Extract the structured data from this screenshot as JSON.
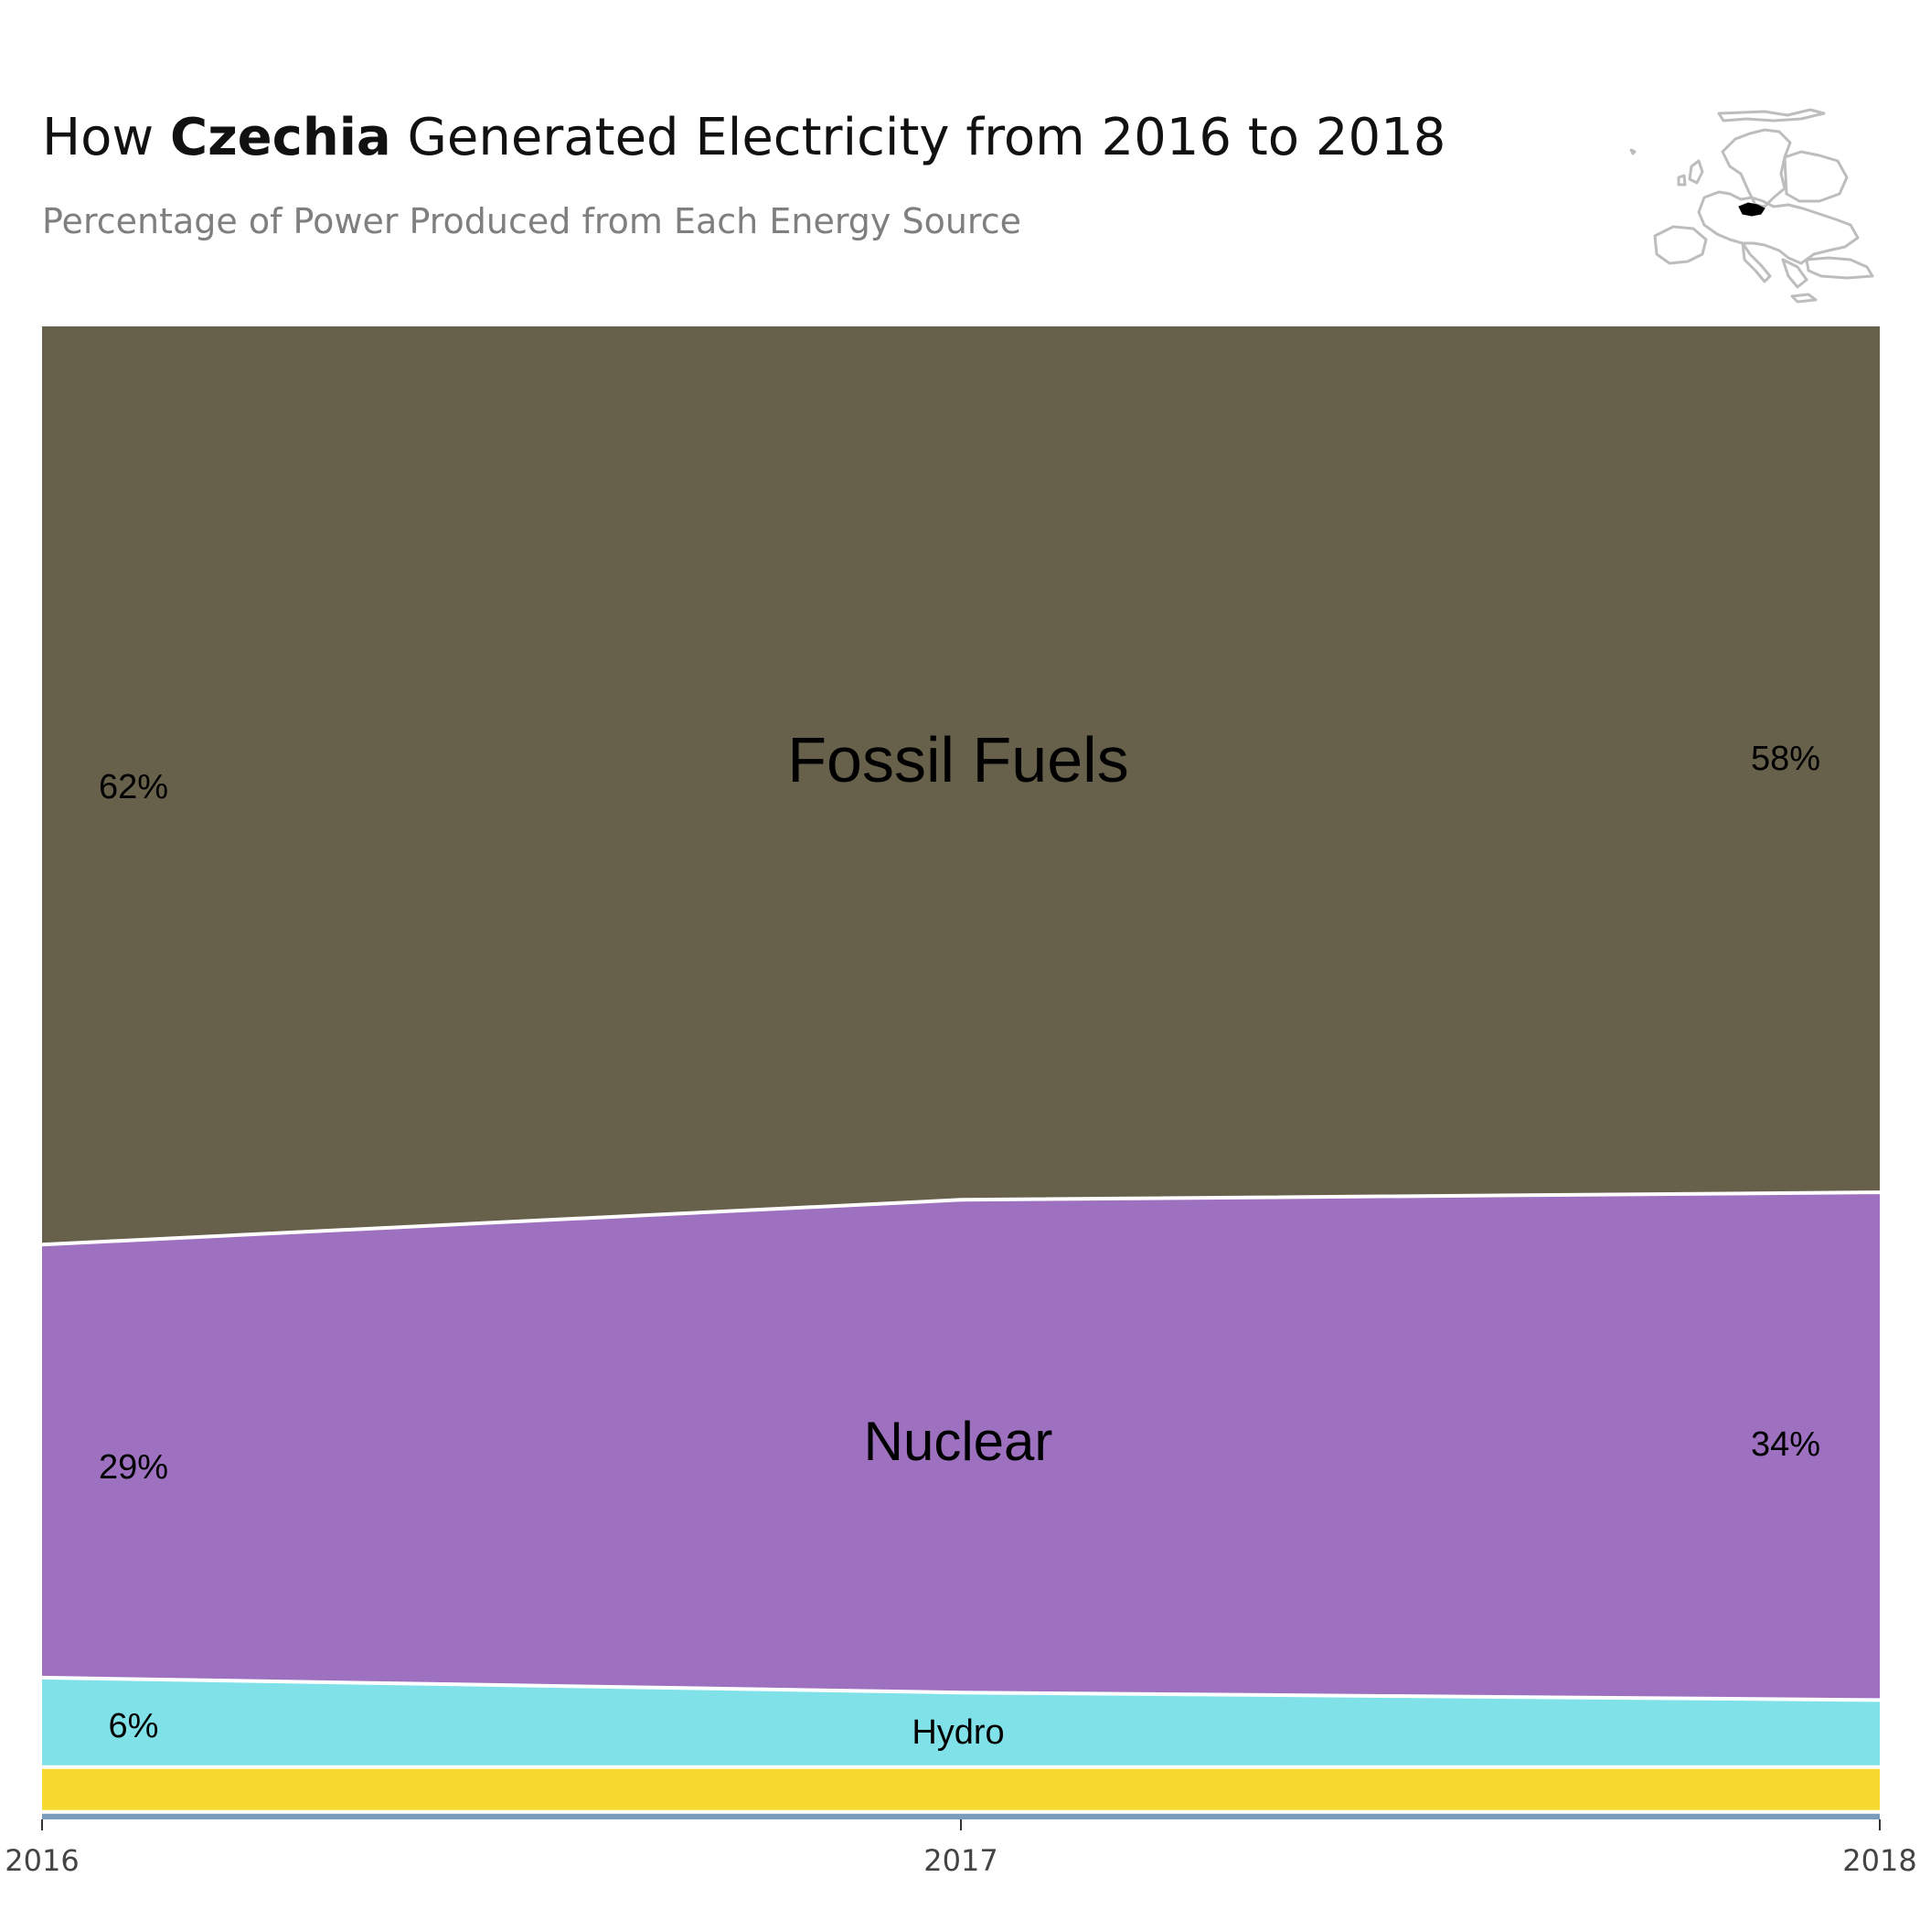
{
  "title": {
    "prefix": "How ",
    "country": "Czechia",
    "suffix": " Generated Electricity from 2016 to 2018"
  },
  "subtitle": "Percentage of Power Produced from Each Energy Source",
  "locator_map": {
    "region": "Europe",
    "highlight": "Czechia",
    "outline_color": "#bdbdbd",
    "highlight_color": "#000000"
  },
  "chart_data": {
    "type": "area",
    "stacking": "percent",
    "x": [
      2016,
      2017,
      2018
    ],
    "x_tick_labels": [
      "2016",
      "2017",
      "2018"
    ],
    "ylim": [
      0,
      100
    ],
    "grid": false,
    "legend": "none",
    "series": [
      {
        "name": "",
        "key": "other",
        "values": [
          0.5,
          0.5,
          0.5
        ],
        "color": "#7c9cbd"
      },
      {
        "name": "",
        "key": "solar",
        "values": [
          3,
          3,
          3
        ],
        "color": "#f7da2f"
      },
      {
        "name": "Hydro",
        "key": "hydro",
        "values": [
          6,
          5,
          4.5
        ],
        "color": "#80e2e8"
      },
      {
        "name": "Nuclear",
        "key": "nuclear",
        "values": [
          29,
          33,
          34
        ],
        "color": "#9d71c0"
      },
      {
        "name": "Fossil Fuels",
        "key": "fossil",
        "values": [
          61.5,
          58.5,
          58
        ],
        "color": "#67604a"
      }
    ],
    "labels": {
      "fossil": {
        "series_label": "Fossil Fuels",
        "start": "62%",
        "end": "58%"
      },
      "nuclear": {
        "series_label": "Nuclear",
        "start": "29%",
        "end": "34%"
      },
      "hydro": {
        "series_label": "Hydro",
        "start": "6%",
        "end": ""
      }
    }
  }
}
